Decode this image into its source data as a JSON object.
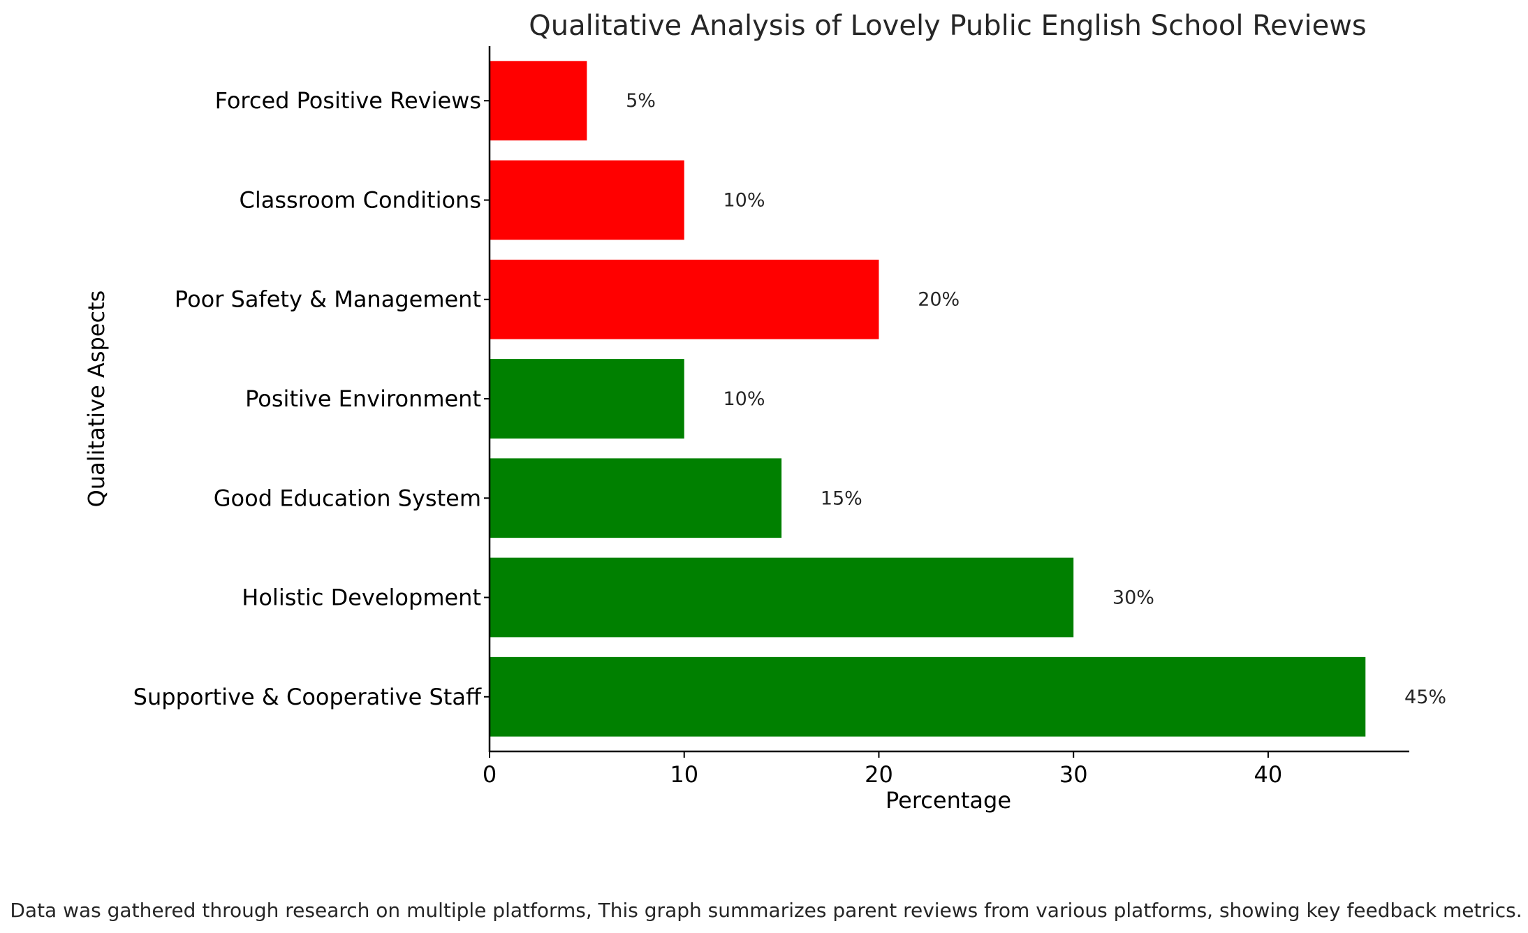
{
  "chart_data": {
    "type": "bar",
    "orientation": "horizontal",
    "title": "Qualitative Analysis of Lovely Public English School Reviews",
    "xlabel": "Percentage",
    "ylabel": "Qualitative Aspects",
    "xlim": [
      0,
      47.25
    ],
    "xticks": [
      0,
      10,
      20,
      30,
      40
    ],
    "categories": [
      "Supportive & Cooperative Staff",
      "Holistic Development",
      "Good Education System",
      "Positive Environment",
      "Poor Safety & Management",
      "Classroom Conditions",
      "Forced Positive Reviews"
    ],
    "values": [
      45,
      30,
      15,
      10,
      20,
      10,
      5
    ],
    "data_labels": [
      "45%",
      "30%",
      "15%",
      "10%",
      "20%",
      "10%",
      "5%"
    ],
    "colors": [
      "#008000",
      "#008000",
      "#008000",
      "#008000",
      "#ff0000",
      "#ff0000",
      "#ff0000"
    ],
    "grid": false,
    "legend": "none"
  },
  "footnote": "Data was gathered through research on multiple platforms, This graph summarizes parent reviews from various platforms, showing key feedback metrics."
}
